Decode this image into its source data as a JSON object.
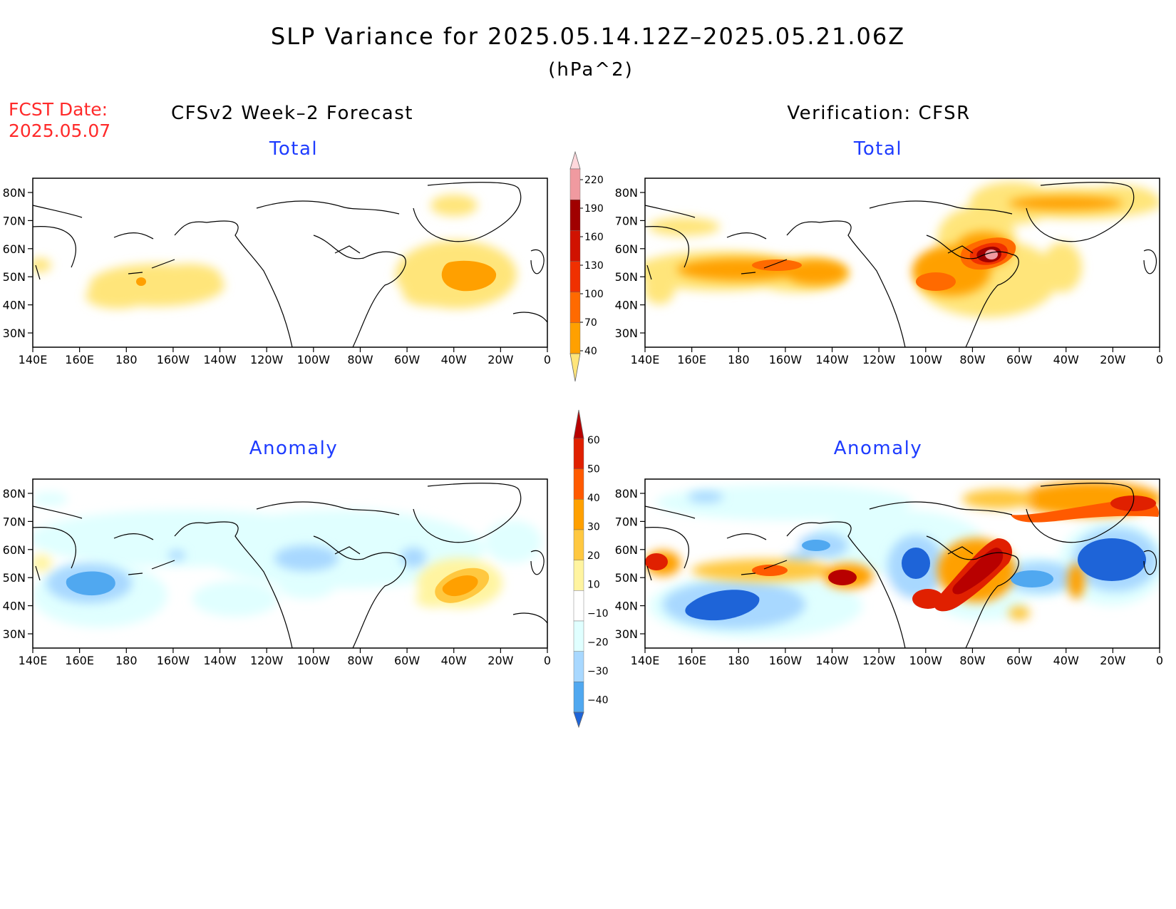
{
  "title": "SLP Variance for 2025.05.14.12Z–2025.05.21.06Z",
  "subtitle": "(hPa^2)",
  "fcst_label": "FCST Date:",
  "fcst_date": "2025.05.07",
  "left_header": "CFSv2 Week–2 Forecast",
  "right_header": "Verification: CFSR",
  "panels": {
    "fc_total": {
      "title": "Total"
    },
    "ver_total": {
      "title": "Total"
    },
    "fc_anom": {
      "title": "Anomaly"
    },
    "ver_anom": {
      "title": "Anomaly"
    }
  },
  "lat_labels": [
    "80N",
    "70N",
    "60N",
    "50N",
    "40N",
    "30N"
  ],
  "lon_labels": [
    "140E",
    "160E",
    "180",
    "160W",
    "140W",
    "120W",
    "100W",
    "80W",
    "60W",
    "40W",
    "20W",
    "0"
  ],
  "colors": {
    "title": "#000000",
    "fcst": "#ff2a2a",
    "panel_title": "#1e3cff"
  },
  "total_scale": {
    "levels": [
      "40",
      "70",
      "100",
      "130",
      "160",
      "190",
      "220"
    ],
    "colors": [
      "#ffe57a",
      "#ffa000",
      "#ff6a00",
      "#f03000",
      "#d01200",
      "#a00000",
      "#f09aa0",
      "#ffd8dc"
    ]
  },
  "anom_scale": {
    "levels": [
      "60",
      "50",
      "40",
      "30",
      "20",
      "10",
      "−10",
      "−20",
      "−30",
      "−40"
    ],
    "colors": [
      "#b80000",
      "#e02000",
      "#ff5a00",
      "#ffa000",
      "#ffc840",
      "#fff4a0",
      "#ffffff",
      "#e0ffff",
      "#a8d8ff",
      "#50a8f0",
      "#1e64d8"
    ]
  }
}
